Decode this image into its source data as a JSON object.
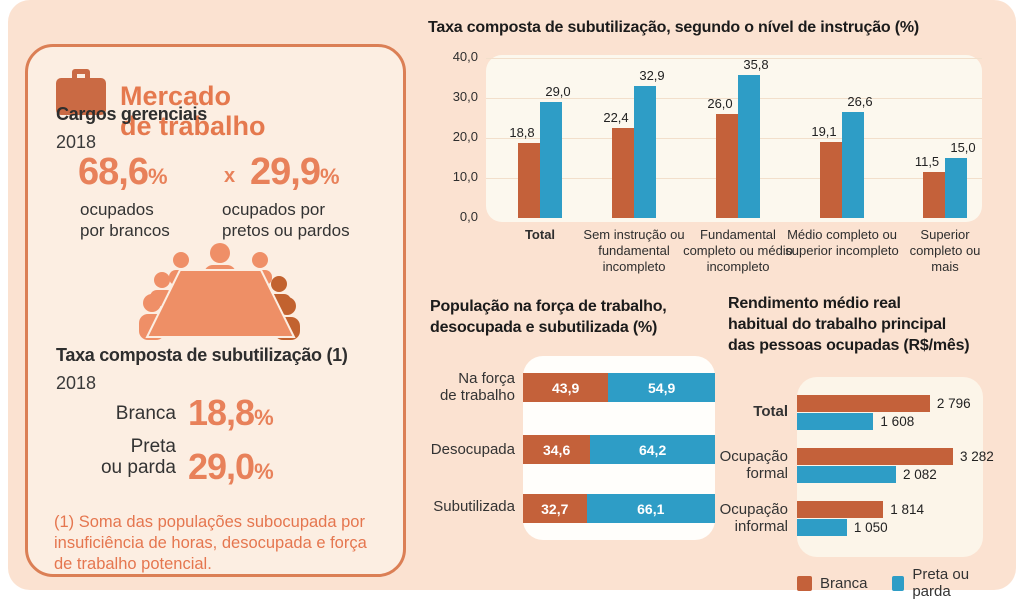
{
  "left_card": {
    "title": "Mercado\nde trabalho",
    "cargos": {
      "heading": "Cargos gerenciais",
      "year": "2018",
      "value_brancos": "68,6",
      "value_pretos": "29,9",
      "percent_sign": "%",
      "versus": "x",
      "label_brancos": "ocupados\npor brancos",
      "label_pretos": "ocupados por\npretos ou pardos"
    },
    "taxa": {
      "heading": "Taxa composta de subutilização (1)",
      "year": "2018",
      "rows": [
        {
          "label": "Branca",
          "value": "18,8"
        },
        {
          "label": "Preta\nou parda",
          "value": "29,0"
        }
      ],
      "percent_sign": "%"
    },
    "footnote": "(1) Soma das populações subocupada por insuficiência de horas, desocupada e força de trabalho potencial."
  },
  "chart_data": [
    {
      "type": "bar",
      "title": "Taxa composta de subutilização, segundo o nível de instrução (%)",
      "categories": [
        "Total",
        "Sem instrução ou fundamental incompleto",
        "Fundamental completo ou médio incompleto",
        "Médio completo ou superior incompleto",
        "Superior completo ou mais"
      ],
      "series": [
        {
          "name": "Branca",
          "color": "#c4613a",
          "values": [
            18.8,
            22.4,
            26.0,
            19.1,
            11.5
          ],
          "labels": [
            "18,8",
            "22,4",
            "26,0",
            "19,1",
            "11,5"
          ]
        },
        {
          "name": "Preta ou parda",
          "color": "#2e9dc6",
          "values": [
            29.0,
            32.9,
            35.8,
            26.6,
            15.0
          ],
          "labels": [
            "29,0",
            "32,9",
            "35,8",
            "26,6",
            "15,0"
          ]
        }
      ],
      "ylim": [
        0,
        40
      ],
      "yticks": [
        "40,0",
        "30,0",
        "20,0",
        "10,0",
        "0,0"
      ],
      "grid": true,
      "legend_position": "none",
      "unit": "%"
    },
    {
      "type": "bar-stacked-horizontal",
      "title": "População na força de trabalho,\ndesocupada e subutilizada (%)",
      "categories": [
        "Na força\nde trabalho",
        "Desocupada",
        "Subutilizada"
      ],
      "series": [
        {
          "name": "Branca",
          "color": "#c4613a",
          "values": [
            43.9,
            34.6,
            32.7
          ],
          "labels": [
            "43,9",
            "34,6",
            "32,7"
          ]
        },
        {
          "name": "Preta ou parda",
          "color": "#2e9dc6",
          "values": [
            54.9,
            64.2,
            66.1
          ],
          "labels": [
            "54,9",
            "64,2",
            "66,1"
          ]
        }
      ],
      "unit": "%"
    },
    {
      "type": "bar-grouped-horizontal",
      "title": "Rendimento médio real\nhabitual do trabalho principal\ndas pessoas ocupadas (R$/mês)",
      "categories": [
        "Total",
        "Ocupação\nformal",
        "Ocupação\ninformal"
      ],
      "series": [
        {
          "name": "Branca",
          "color": "#c4613a",
          "values": [
            2796,
            3282,
            1814
          ],
          "labels": [
            "2 796",
            "3 282",
            "1 814"
          ]
        },
        {
          "name": "Preta ou parda",
          "color": "#2e9dc6",
          "values": [
            1608,
            2082,
            1050
          ],
          "labels": [
            "1 608",
            "2 082",
            "1 050"
          ]
        }
      ],
      "xmax": 3282,
      "unit": "R$/mês"
    }
  ],
  "legend": {
    "items": [
      {
        "label": "Branca",
        "color": "#c4613a"
      },
      {
        "label": "Preta ou parda",
        "color": "#2e9dc6"
      }
    ]
  },
  "colors": {
    "canvas_bg": "#fbe2d1",
    "panel_bg": "#fceee2",
    "panel_border": "#db7f55",
    "accent_salmon": "#e8815a",
    "branca": "#c4613a",
    "preta_parda": "#2e9dc6",
    "chart_card_bg": "#fcf8ee",
    "mid_card_bg": "#fffefb",
    "right_card_bg": "#fcf5e9",
    "gridline": "#f2dfcb",
    "icon_orange": "#ca6a44",
    "icon_light": "#ef8f67",
    "icon_dark": "#c2622f"
  }
}
